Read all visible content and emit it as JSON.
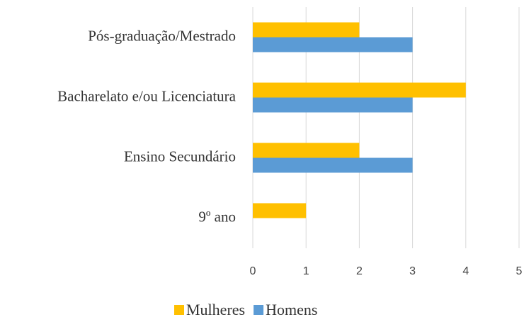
{
  "chart_data": {
    "type": "barh",
    "categories": [
      "Pós-graduação/Mestrado",
      "Bacharelato e/ou Licenciatura",
      "Ensino Secundário",
      "9º ano"
    ],
    "series": [
      {
        "name": "Mulheres",
        "color": "#ffc000",
        "values": [
          2,
          4,
          2,
          1
        ]
      },
      {
        "name": "Homens",
        "color": "#5b9bd5",
        "values": [
          3,
          3,
          3,
          0
        ]
      }
    ],
    "xlim": [
      0,
      5
    ],
    "xticks": [
      0,
      1,
      2,
      3,
      4,
      5
    ],
    "grid": true,
    "legend": "bottom"
  }
}
